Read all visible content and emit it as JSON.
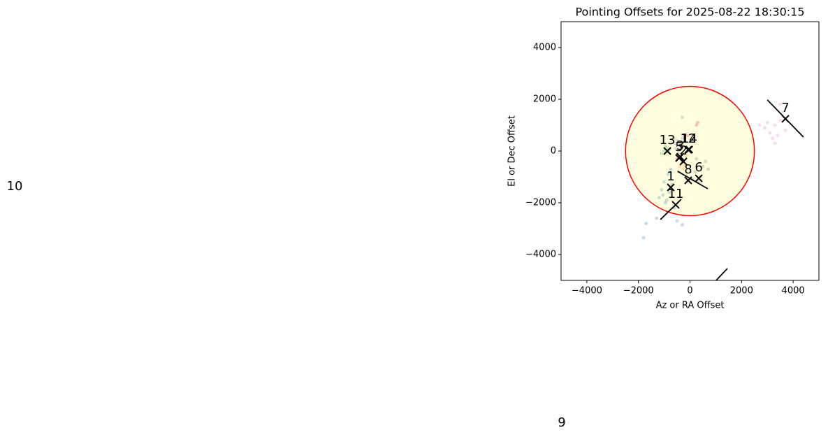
{
  "chart_data": {
    "type": "scatter",
    "title": "Pointing Offsets for 2025-08-22 18:30:15",
    "xlabel": "Az or RA Offset",
    "ylabel": "El or Dec Offset",
    "xlim": [
      -5000,
      5000
    ],
    "ylim": [
      -5000,
      5000
    ],
    "xticks": [
      {
        "value": -4000,
        "label": "−4000"
      },
      {
        "value": -2000,
        "label": "−2000"
      },
      0,
      2000,
      4000
    ],
    "yticks": [
      {
        "value": -4000,
        "label": "−4000"
      },
      {
        "value": -2000,
        "label": "−2000"
      },
      0,
      2000,
      4000
    ],
    "circle": {
      "cx": 0,
      "cy": 0,
      "r": 2500,
      "edgecolor": "#ff0000",
      "facecolor": "#ffffe0"
    },
    "series": [
      {
        "color": "#1f77b4",
        "x": [
          -1200,
          -1100,
          -1000,
          -900,
          -800,
          -700,
          -950,
          -1050,
          -850,
          -600,
          -1700,
          -1800,
          -500,
          -300,
          -1300,
          -750
        ],
        "values": [
          -1800,
          -1500,
          -1200,
          -1900,
          -1600,
          -1300,
          -2000,
          -1700,
          -900,
          -2200,
          -2800,
          -3350,
          -2700,
          -2850,
          -2600,
          -700
        ]
      },
      {
        "color": "#ff7f0e",
        "x": [
          -400,
          -300,
          -250,
          -350,
          -200,
          -150,
          -450
        ],
        "values": [
          -600,
          -450,
          -700,
          -300,
          -550,
          -200,
          -800
        ]
      },
      {
        "color": "#2ca02c",
        "x": [
          -1000,
          -900,
          -850,
          -950,
          -800,
          -1100
        ],
        "values": [
          0,
          100,
          -50,
          200,
          50,
          -100
        ]
      },
      {
        "color": "#d62728",
        "x": [
          300,
          250,
          -100,
          -300,
          -500
        ],
        "values": [
          1100,
          1000,
          600,
          300,
          -300
        ]
      },
      {
        "color": "#9467bd",
        "x": [
          -600,
          -500,
          -400,
          -300,
          -550,
          -450
        ],
        "values": [
          300,
          400,
          200,
          500,
          100,
          -100
        ]
      },
      {
        "color": "#8c564b",
        "x": [
          200,
          400,
          500,
          300,
          600,
          100,
          700,
          250
        ],
        "values": [
          -800,
          -1000,
          -600,
          -1200,
          -400,
          -1100,
          -700,
          -300
        ]
      },
      {
        "color": "#e377c2",
        "x": [
          2900,
          3100,
          3300,
          3500,
          3200,
          3600,
          3000,
          3400,
          3700,
          2700,
          3300,
          3500
        ],
        "values": [
          900,
          700,
          1000,
          1200,
          500,
          1500,
          1100,
          600,
          800,
          1000,
          300,
          1800
        ]
      },
      {
        "color": "#7f7f7f",
        "x": [
          -300,
          -600
        ],
        "values": [
          1300,
          500
        ]
      }
    ],
    "centers": [
      {
        "label": "1",
        "x": -745,
        "y": -1405
      },
      {
        "label": "11",
        "x": -555,
        "y": -2080
      },
      {
        "label": "13",
        "x": -880,
        "y": 0
      },
      {
        "label": "5",
        "x": -420,
        "y": -270
      },
      {
        "label": "3",
        "x": -380,
        "y": -220
      },
      {
        "label": "12",
        "x": -70,
        "y": 50
      },
      {
        "label": "14",
        "x": -30,
        "y": 60
      },
      {
        "label": "2",
        "x": -255,
        "y": -405
      },
      {
        "label": "8",
        "x": -70,
        "y": -1135
      },
      {
        "label": "6",
        "x": 340,
        "y": -1055
      },
      {
        "label": "7",
        "x": 3700,
        "y": 1245
      }
    ],
    "marker_color": "#000000",
    "lines": [
      {
        "x": [
          3000,
          4400
        ],
        "y": [
          1975,
          540
        ]
      },
      {
        "x": [
          -475,
          690
        ],
        "y": [
          -785,
          -1460
        ]
      },
      {
        "x": [
          -1150,
          -340
        ],
        "y": [
          -2650,
          -1865
        ]
      },
      {
        "x": [
          1015,
          1450
        ],
        "y": [
          -5000,
          -4540
        ]
      }
    ],
    "annotations": [
      "10",
      "9"
    ]
  }
}
